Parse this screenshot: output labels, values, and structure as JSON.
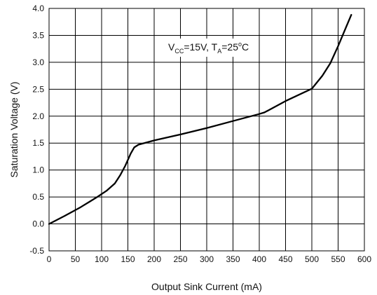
{
  "chart_data": {
    "type": "line",
    "title": "",
    "xlabel": "Output Sink Current (mA)",
    "ylabel": "Saturation Voltage (V)",
    "xlim": [
      0,
      600
    ],
    "ylim": [
      -0.5,
      4.0
    ],
    "xticks": [
      0,
      50,
      100,
      150,
      200,
      250,
      300,
      350,
      400,
      450,
      500,
      550,
      600
    ],
    "yticks": [
      -0.5,
      0.0,
      0.5,
      1.0,
      1.5,
      2.0,
      2.5,
      3.0,
      3.5,
      4.0
    ],
    "xtick_labels": [
      "0",
      "50",
      "100",
      "150",
      "200",
      "250",
      "300",
      "350",
      "400",
      "450",
      "500",
      "550",
      "600"
    ],
    "ytick_labels": [
      "-0.5",
      "0.0",
      "0.5",
      "1.0",
      "1.5",
      "2.0",
      "2.5",
      "3.0",
      "3.5",
      "4.0"
    ],
    "grid": true,
    "annotation": {
      "v": "V",
      "v_sub": "CC",
      "mid": "=15V, T",
      "t_sub": "A",
      "temp": "=25",
      "degree": "o",
      "unit": "C"
    },
    "series": [
      {
        "x": [
          0,
          30,
          60,
          90,
          110,
          125,
          135,
          145,
          155,
          162,
          170,
          200,
          250,
          300,
          350,
          400,
          410,
          450,
          500,
          520,
          535,
          550,
          565,
          575
        ],
        "y": [
          0.0,
          0.15,
          0.31,
          0.49,
          0.62,
          0.75,
          0.9,
          1.08,
          1.3,
          1.42,
          1.47,
          1.55,
          1.66,
          1.78,
          1.91,
          2.04,
          2.07,
          2.28,
          2.51,
          2.75,
          2.98,
          3.3,
          3.65,
          3.88
        ],
        "color": "#000000"
      }
    ]
  }
}
